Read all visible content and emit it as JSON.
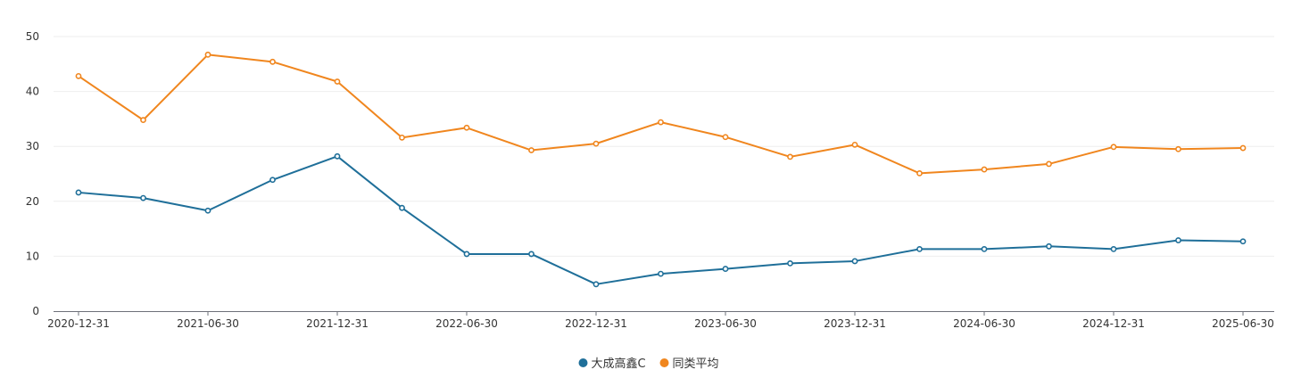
{
  "chart_data": {
    "type": "line",
    "x": [
      "2020-12-31",
      "2021-03-31",
      "2021-06-30",
      "2021-09-30",
      "2021-12-31",
      "2022-03-31",
      "2022-06-30",
      "2022-09-30",
      "2022-12-31",
      "2023-03-31",
      "2023-06-30",
      "2023-09-30",
      "2023-12-31",
      "2024-03-31",
      "2024-06-30",
      "2024-09-30",
      "2024-12-31",
      "2025-03-31",
      "2025-06-30"
    ],
    "x_tick_labels": [
      "2020-12-31",
      "2021-06-30",
      "2021-12-31",
      "2022-06-30",
      "2022-12-31",
      "2023-06-30",
      "2023-12-31",
      "2024-06-30",
      "2024-12-31",
      "2025-06-30"
    ],
    "y_ticks": [
      0,
      10,
      20,
      30,
      40,
      50
    ],
    "ylim": [
      0,
      50
    ],
    "grid": "horizontal",
    "legend_position": "bottom-center",
    "series": [
      {
        "name": "大成高鑫C",
        "color": "#1f6f99",
        "values": [
          21.6,
          20.6,
          18.3,
          23.9,
          28.2,
          18.8,
          10.4,
          10.4,
          4.9,
          6.8,
          7.7,
          8.7,
          9.1,
          11.3,
          11.3,
          11.8,
          11.3,
          12.9,
          12.7
        ]
      },
      {
        "name": "同类平均",
        "color": "#f0861e",
        "values": [
          42.8,
          34.8,
          46.7,
          45.4,
          41.8,
          31.6,
          33.4,
          29.3,
          30.5,
          34.4,
          31.7,
          28.1,
          30.3,
          25.1,
          25.8,
          26.8,
          29.9,
          29.5,
          29.7
        ]
      }
    ]
  }
}
